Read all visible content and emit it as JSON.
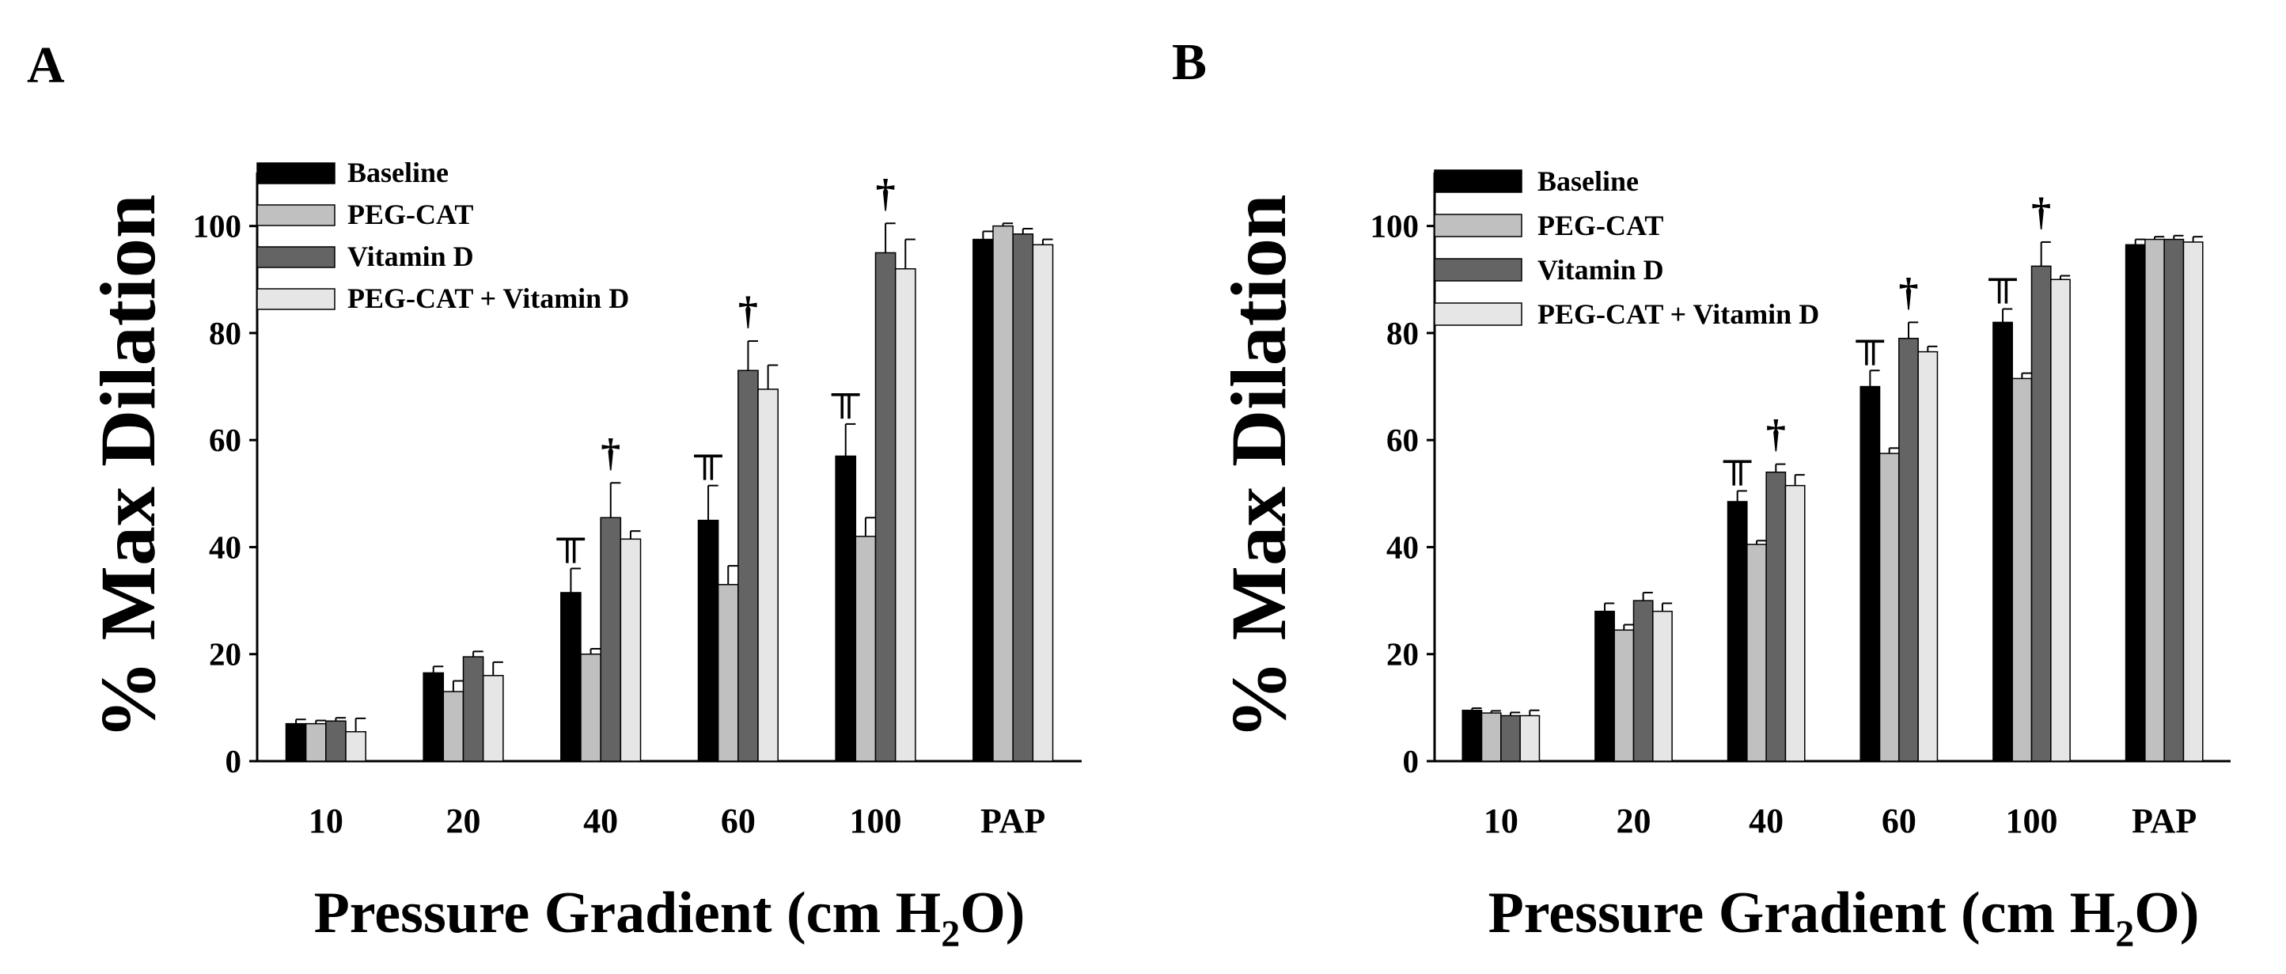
{
  "chart_data": [
    {
      "panel": "A",
      "type": "bar",
      "xlabel_main": "Pressure Gradient (cm H",
      "xlabel_sub": "2",
      "xlabel_end": "O)",
      "ylabel": "% Max Dilation",
      "ylim": [
        0,
        110
      ],
      "yticks": [
        "0",
        "20",
        "40",
        "60",
        "80",
        "100"
      ],
      "categories": [
        "10",
        "20",
        "40",
        "60",
        "100",
        "PAP"
      ],
      "series": [
        {
          "name": "Baseline",
          "color": "#000000",
          "values": [
            7,
            16.5,
            31.5,
            45,
            57,
            97.5
          ],
          "errors": [
            0.8,
            1.2,
            4.5,
            6.5,
            6,
            1.5
          ]
        },
        {
          "name": "PEG-CAT",
          "color": "#c0c0c0",
          "values": [
            7,
            13,
            20,
            33,
            42,
            100
          ],
          "errors": [
            0.6,
            2,
            1,
            3.5,
            3.5,
            0.5
          ]
        },
        {
          "name": "Vitamin D",
          "color": "#646464",
          "values": [
            7.5,
            19.5,
            45.5,
            73,
            95,
            98.5
          ],
          "errors": [
            0.6,
            1,
            6.5,
            5.5,
            5.5,
            1
          ]
        },
        {
          "name": "PEG-CAT + Vitamin D",
          "color": "#e6e6e6",
          "values": [
            5.5,
            16,
            41.5,
            69.5,
            92,
            96.5
          ],
          "errors": [
            2.5,
            2.5,
            1.5,
            4.5,
            5.5,
            1
          ]
        }
      ],
      "annotations": [
        {
          "symbol": "†",
          "category": "40",
          "series": "Vitamin D"
        },
        {
          "symbol": "†",
          "category": "60",
          "series": "Vitamin D"
        },
        {
          "symbol": "†",
          "category": "100",
          "series": "Vitamin D"
        },
        {
          "symbol": "╥",
          "category": "40",
          "series": "Baseline"
        },
        {
          "symbol": "╥",
          "category": "60",
          "series": "Baseline"
        },
        {
          "symbol": "╥",
          "category": "100",
          "series": "Baseline"
        }
      ]
    },
    {
      "panel": "B",
      "type": "bar",
      "xlabel_main": "Pressure Gradient (cm H",
      "xlabel_sub": "2",
      "xlabel_end": "O)",
      "ylabel": "% Max Dilation",
      "ylim": [
        0,
        110
      ],
      "yticks": [
        "0",
        "20",
        "40",
        "60",
        "80",
        "100"
      ],
      "categories": [
        "10",
        "20",
        "40",
        "60",
        "100",
        "PAP"
      ],
      "series": [
        {
          "name": "Baseline",
          "color": "#000000",
          "values": [
            9.5,
            28,
            48.5,
            70,
            82,
            96.5
          ],
          "errors": [
            0.4,
            1.5,
            2,
            3,
            2.5,
            1
          ]
        },
        {
          "name": "PEG-CAT",
          "color": "#c0c0c0",
          "values": [
            9,
            24.5,
            40.5,
            57.5,
            71.5,
            97.5
          ],
          "errors": [
            0.4,
            1,
            0.7,
            1,
            1,
            0.5
          ]
        },
        {
          "name": "Vitamin D",
          "color": "#646464",
          "values": [
            8.5,
            30,
            54,
            79,
            92.5,
            97.5
          ],
          "errors": [
            0.6,
            1.5,
            1.5,
            3,
            4.5,
            0.7
          ]
        },
        {
          "name": "PEG-CAT + Vitamin D",
          "color": "#e6e6e6",
          "values": [
            8.5,
            28,
            51.5,
            76.5,
            90,
            97
          ],
          "errors": [
            1,
            1.5,
            2,
            1,
            0.7,
            1
          ]
        }
      ],
      "annotations": [
        {
          "symbol": "†",
          "category": "40",
          "series": "Vitamin D"
        },
        {
          "symbol": "†",
          "category": "60",
          "series": "Vitamin D"
        },
        {
          "symbol": "†",
          "category": "100",
          "series": "Vitamin D"
        },
        {
          "symbol": "╥",
          "category": "40",
          "series": "Baseline"
        },
        {
          "symbol": "╥",
          "category": "60",
          "series": "Baseline"
        },
        {
          "symbol": "╥",
          "category": "100",
          "series": "Baseline"
        }
      ]
    }
  ]
}
